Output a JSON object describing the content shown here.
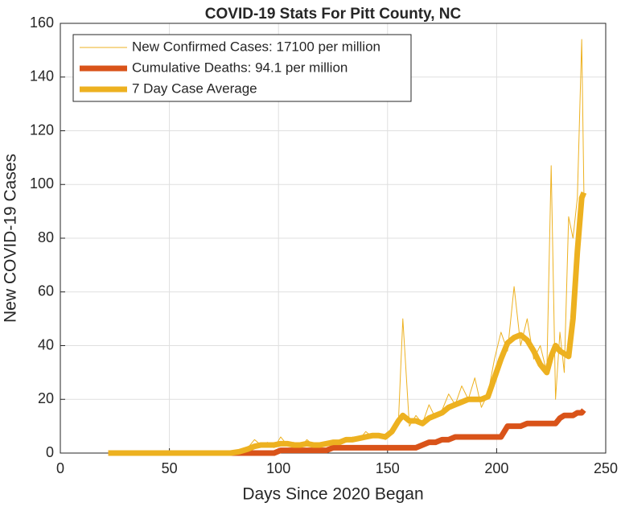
{
  "chart_data": {
    "type": "line",
    "title": "COVID-19 Stats For Pitt County, NC",
    "x_label": "Days Since 2020 Began",
    "y_label": "New COVID-19 Cases",
    "x": [
      22,
      30,
      40,
      50,
      60,
      70,
      78,
      82,
      86,
      89,
      92,
      95,
      98,
      101,
      104,
      107,
      110,
      113,
      116,
      119,
      122,
      125,
      128,
      131,
      134,
      137,
      140,
      143,
      146,
      149,
      152,
      155,
      157,
      160,
      163,
      166,
      169,
      172,
      175,
      178,
      181,
      184,
      187,
      190,
      193,
      196,
      199,
      202,
      205,
      208,
      211,
      214,
      217,
      220,
      223,
      225,
      227,
      229,
      231,
      233,
      235,
      237,
      239,
      240
    ],
    "series": [
      {
        "name": "New Confirmed Cases: 17100 per million",
        "color": "#EDB120",
        "width": 1,
        "values": [
          0,
          0,
          0,
          0,
          0,
          0,
          0,
          1,
          2,
          5,
          3,
          4,
          2,
          6,
          3,
          4,
          2,
          5,
          3,
          2,
          4,
          3,
          5,
          4,
          6,
          5,
          8,
          6,
          7,
          5,
          9,
          12,
          50,
          10,
          14,
          11,
          18,
          13,
          16,
          22,
          18,
          25,
          20,
          28,
          17,
          22,
          35,
          45,
          38,
          62,
          40,
          50,
          35,
          40,
          30,
          107,
          20,
          45,
          30,
          88,
          80,
          95,
          154,
          97
        ]
      },
      {
        "name": "Cumulative Deaths: 94.1 per million",
        "color": "#D95319",
        "width": 7,
        "values": [
          0,
          0,
          0,
          0,
          0,
          0,
          0,
          0,
          0,
          0,
          0,
          0,
          0,
          1,
          1,
          1,
          1,
          1,
          1,
          1,
          1,
          2,
          2,
          2,
          2,
          2,
          2,
          2,
          2,
          2,
          2,
          2,
          2,
          2,
          2,
          3,
          4,
          4,
          5,
          5,
          6,
          6,
          6,
          6,
          6,
          6,
          6,
          6,
          10,
          10,
          10,
          11,
          11,
          11,
          11,
          11,
          11,
          13,
          14,
          14,
          14,
          15,
          15,
          16
        ]
      },
      {
        "name": "7 Day Case Average",
        "color": "#EDB120",
        "width": 7,
        "values": [
          0,
          0,
          0,
          0,
          0,
          0,
          0,
          0.5,
          1.5,
          2.5,
          3,
          3,
          3,
          3.5,
          3.5,
          3,
          3,
          3.5,
          3,
          3,
          3.5,
          4,
          4,
          5,
          5,
          5.5,
          6,
          6.5,
          6.5,
          6,
          8,
          12,
          14,
          12,
          12,
          11,
          13,
          14,
          15,
          17,
          18,
          19,
          20,
          20,
          20,
          21,
          28,
          35,
          41,
          43,
          44,
          42,
          38,
          33,
          30,
          36,
          40,
          38,
          37,
          36,
          50,
          75,
          95,
          97
        ]
      }
    ],
    "xlim": [
      0,
      250
    ],
    "xticks": [
      0,
      50,
      100,
      150,
      200,
      250
    ],
    "ylim": [
      0,
      160
    ],
    "yticks": [
      0,
      20,
      40,
      60,
      80,
      100,
      120,
      140,
      160
    ],
    "grid": true,
    "legend": "upper left"
  }
}
